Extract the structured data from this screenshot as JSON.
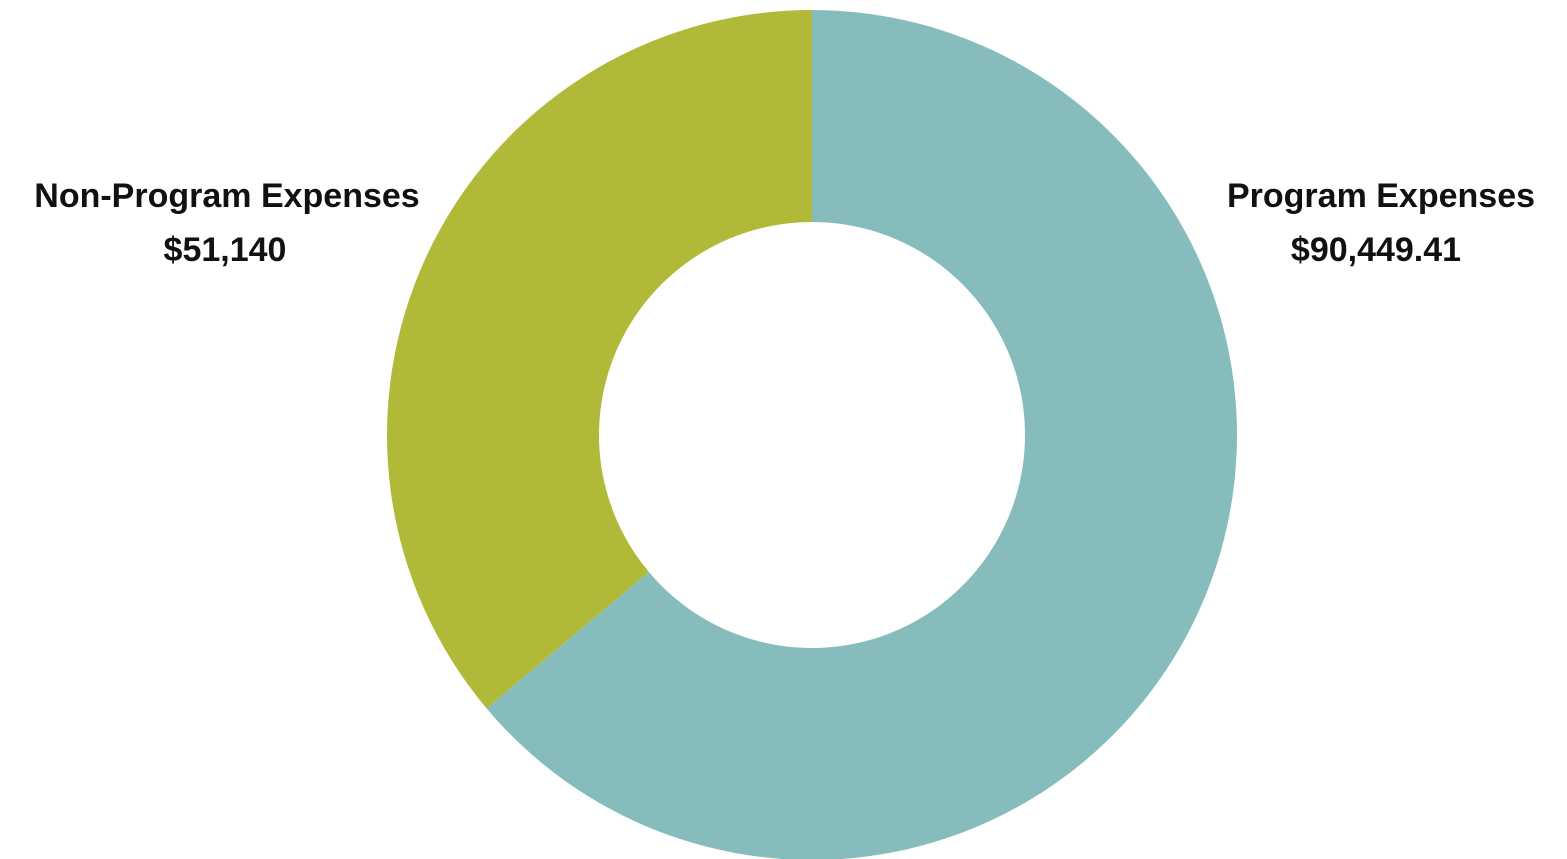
{
  "chart_data": {
    "type": "pie",
    "variant": "donut",
    "start_angle_note": "clockwise from 12 o'clock",
    "slices": [
      {
        "label": "Program Expenses",
        "value": 90449.41,
        "value_label": "$90,449.41",
        "color": "#86bdbc"
      },
      {
        "label": "Non-Program Expenses",
        "value": 51140,
        "value_label": "$51,140",
        "color": "#b0ba38"
      }
    ],
    "legend": "none",
    "title": ""
  }
}
